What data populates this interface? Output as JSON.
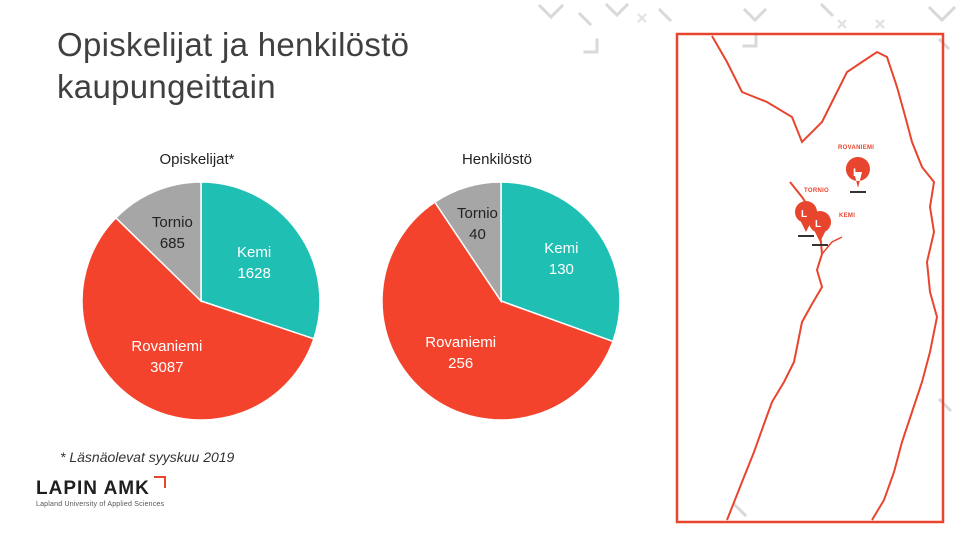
{
  "title_lines": [
    "Opiskelijat ja henkilöstö",
    "kaupungeittain"
  ],
  "footnote": "* Läsnäolevat syyskuu 2019",
  "logo": {
    "name": "LAPIN AMK",
    "subtitle": "Lapland University of Applied Sciences"
  },
  "colors": {
    "teal": "#20bfb4",
    "red": "#f4432c",
    "grey": "#a6a6a6",
    "accent": "#e8452e"
  },
  "chart_data": [
    {
      "type": "pie",
      "title": "Opiskelijat*",
      "categories": [
        "Kemi",
        "Rovaniemi",
        "Tornio"
      ],
      "values": [
        1628,
        3087,
        685
      ],
      "labels": [
        {
          "name": "Kemi",
          "value": "1628"
        },
        {
          "name": "Rovaniemi",
          "value": "3087"
        },
        {
          "name": "Tornio",
          "value": "685"
        }
      ]
    },
    {
      "type": "pie",
      "title": "Henkilöstö",
      "categories": [
        "Kemi",
        "Rovaniemi",
        "Tornio"
      ],
      "values": [
        130,
        256,
        40
      ],
      "labels": [
        {
          "name": "Kemi",
          "value": "130"
        },
        {
          "name": "Rovaniemi",
          "value": "256"
        },
        {
          "name": "Tornio",
          "value": "40"
        }
      ]
    }
  ],
  "map": {
    "labels": [
      "ROVANIEMI",
      "TORNIO",
      "KEMI"
    ],
    "pin_letter": "L",
    "icon": "finland-map-icon"
  }
}
